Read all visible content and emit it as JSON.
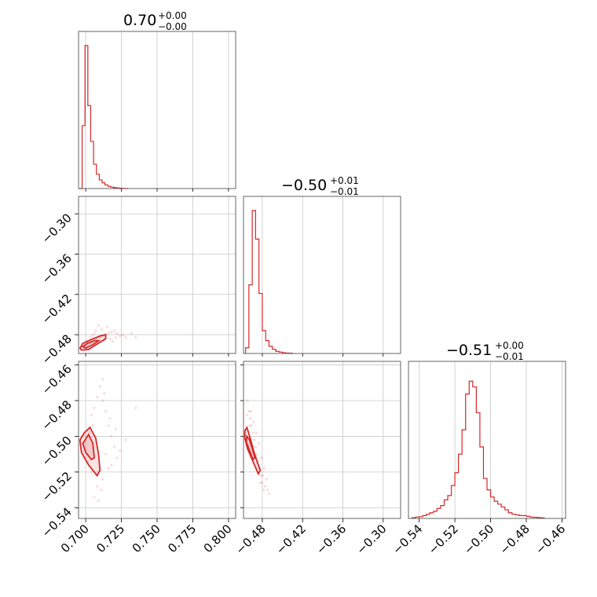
{
  "chart_data": {
    "type": "corner",
    "grid": true,
    "color": "#d62728",
    "parameters": [
      {
        "title": "0.70",
        "plus": "+0.00",
        "minus": "−0.00",
        "range": [
          0.695,
          0.805
        ],
        "ticks": [
          0.7,
          0.725,
          0.75,
          0.775,
          0.8
        ],
        "tick_labels": [
          "0.700",
          "0.725",
          "0.750",
          "0.775",
          "0.800"
        ],
        "hist_bins": [
          0.6955,
          0.6975,
          0.6995,
          0.7015,
          0.7035,
          0.7055,
          0.7075,
          0.7095,
          0.7115,
          0.7135,
          0.7155,
          0.7175,
          0.7195,
          0.7215,
          0.7235,
          0.7255,
          0.7275,
          0.7295
        ],
        "hist_counts": [
          0,
          0.44,
          1.0,
          0.58,
          0.33,
          0.17,
          0.1,
          0.06,
          0.04,
          0.025,
          0.015,
          0.01,
          0.006,
          0.004,
          0.002,
          0.001,
          0
        ]
      },
      {
        "title": "−0.50",
        "plus": "+0.01",
        "minus": "−0.01",
        "range": [
          -0.508,
          -0.274
        ],
        "ticks": [
          -0.3,
          -0.36,
          -0.42,
          -0.48
        ],
        "tick_labels": [
          "−0.30",
          "−0.36",
          "−0.42",
          "−0.48"
        ],
        "x_ticks": [
          -0.48,
          -0.42,
          -0.36,
          -0.3
        ],
        "x_tick_labels": [
          "−0.48",
          "−0.42",
          "−0.36",
          "−0.30"
        ],
        "hist_bins": [
          -0.505,
          -0.5,
          -0.495,
          -0.49,
          -0.485,
          -0.48,
          -0.475,
          -0.47,
          -0.465,
          -0.46,
          -0.455,
          -0.45,
          -0.445,
          -0.44,
          -0.435
        ],
        "hist_counts": [
          0.04,
          0.48,
          1.0,
          0.8,
          0.42,
          0.16,
          0.09,
          0.05,
          0.03,
          0.015,
          0.01,
          0.005,
          0.003,
          0.002
        ]
      },
      {
        "title": "−0.51",
        "plus": "+0.00",
        "minus": "−0.01",
        "range": [
          -0.546,
          -0.458
        ],
        "ticks": [
          -0.46,
          -0.48,
          -0.5,
          -0.52,
          -0.54
        ],
        "tick_labels": [
          "−0.46",
          "−0.48",
          "−0.50",
          "−0.52",
          "−0.54"
        ],
        "x_ticks": [
          -0.54,
          -0.52,
          -0.5,
          -0.48,
          -0.46
        ],
        "x_tick_labels": [
          "−0.54",
          "−0.52",
          "−0.50",
          "−0.48",
          "−0.46"
        ],
        "hist_bins": [
          -0.544,
          -0.542,
          -0.54,
          -0.538,
          -0.536,
          -0.534,
          -0.532,
          -0.53,
          -0.528,
          -0.526,
          -0.524,
          -0.522,
          -0.52,
          -0.518,
          -0.516,
          -0.514,
          -0.512,
          -0.51,
          -0.508,
          -0.506,
          -0.504,
          -0.502,
          -0.5,
          -0.498,
          -0.496,
          -0.494,
          -0.492,
          -0.49,
          -0.488,
          -0.486,
          -0.484,
          -0.482,
          -0.48,
          -0.478,
          -0.476,
          -0.474,
          -0.472,
          -0.47
        ],
        "hist_counts": [
          0.005,
          0.01,
          0.012,
          0.02,
          0.03,
          0.04,
          0.05,
          0.07,
          0.09,
          0.13,
          0.16,
          0.23,
          0.32,
          0.45,
          0.62,
          0.87,
          0.96,
          0.92,
          0.74,
          0.5,
          0.28,
          0.2,
          0.15,
          0.12,
          0.1,
          0.08,
          0.06,
          0.04,
          0.03,
          0.025,
          0.02,
          0.02,
          0.015,
          0.01,
          0.008,
          0.006,
          0.004
        ]
      }
    ],
    "pairs": [
      {
        "x_param": 0,
        "y_param": 1,
        "scatter_points": [
          [
            0.7,
            -0.495
          ],
          [
            0.702,
            -0.493
          ],
          [
            0.704,
            -0.49
          ],
          [
            0.706,
            -0.488
          ],
          [
            0.708,
            -0.486
          ],
          [
            0.71,
            -0.484
          ],
          [
            0.712,
            -0.482
          ],
          [
            0.714,
            -0.48
          ],
          [
            0.716,
            -0.478
          ],
          [
            0.718,
            -0.476
          ],
          [
            0.72,
            -0.474
          ],
          [
            0.722,
            -0.478
          ],
          [
            0.724,
            -0.482
          ],
          [
            0.726,
            -0.48
          ],
          [
            0.728,
            -0.484
          ],
          [
            0.732,
            -0.478
          ],
          [
            0.711,
            -0.472
          ],
          [
            0.715,
            -0.468
          ],
          [
            0.709,
            -0.466
          ],
          [
            0.706,
            -0.478
          ],
          [
            0.703,
            -0.484
          ],
          [
            0.713,
            -0.488
          ],
          [
            0.717,
            -0.486
          ],
          [
            0.719,
            -0.49
          ],
          [
            0.721,
            -0.484
          ],
          [
            0.701,
            -0.489
          ],
          [
            0.705,
            -0.482
          ],
          [
            0.707,
            -0.474
          ],
          [
            0.735,
            -0.484
          ],
          [
            0.698,
            -0.497
          ]
        ],
        "contours": [
          [
            [
              0.696,
              -0.5
            ],
            [
              0.698,
              -0.493
            ],
            [
              0.703,
              -0.488
            ],
            [
              0.71,
              -0.482
            ],
            [
              0.714,
              -0.48
            ],
            [
              0.714,
              -0.486
            ],
            [
              0.708,
              -0.494
            ],
            [
              0.702,
              -0.502
            ],
            [
              0.697,
              -0.503
            ]
          ],
          [
            [
              0.698,
              -0.498
            ],
            [
              0.701,
              -0.493
            ],
            [
              0.706,
              -0.489
            ],
            [
              0.709,
              -0.489
            ],
            [
              0.705,
              -0.495
            ],
            [
              0.7,
              -0.5
            ]
          ]
        ]
      },
      {
        "x_param": 0,
        "y_param": 2,
        "scatter_points": [
          [
            0.704,
            -0.488
          ],
          [
            0.706,
            -0.484
          ],
          [
            0.708,
            -0.478
          ],
          [
            0.71,
            -0.472
          ],
          [
            0.712,
            -0.468
          ],
          [
            0.712,
            -0.48
          ],
          [
            0.714,
            -0.486
          ],
          [
            0.716,
            -0.494
          ],
          [
            0.718,
            -0.5
          ],
          [
            0.72,
            -0.506
          ],
          [
            0.722,
            -0.512
          ],
          [
            0.716,
            -0.518
          ],
          [
            0.712,
            -0.524
          ],
          [
            0.708,
            -0.528
          ],
          [
            0.706,
            -0.534
          ],
          [
            0.704,
            -0.52
          ],
          [
            0.702,
            -0.514
          ],
          [
            0.7,
            -0.508
          ],
          [
            0.714,
            -0.51
          ],
          [
            0.718,
            -0.516
          ],
          [
            0.724,
            -0.508
          ],
          [
            0.728,
            -0.502
          ],
          [
            0.735,
            -0.484
          ],
          [
            0.709,
            -0.536
          ],
          [
            0.711,
            -0.53
          ],
          [
            0.703,
            -0.498
          ],
          [
            0.705,
            -0.494
          ],
          [
            0.713,
            -0.476
          ],
          [
            0.717,
            -0.49
          ],
          [
            0.721,
            -0.496
          ]
        ],
        "contours": [
          [
            [
              0.696,
              -0.502
            ],
            [
              0.699,
              -0.498
            ],
            [
              0.703,
              -0.495
            ],
            [
              0.707,
              -0.501
            ],
            [
              0.709,
              -0.51
            ],
            [
              0.71,
              -0.519
            ],
            [
              0.708,
              -0.522
            ],
            [
              0.702,
              -0.516
            ],
            [
              0.697,
              -0.509
            ]
          ],
          [
            [
              0.698,
              -0.504
            ],
            [
              0.702,
              -0.499
            ],
            [
              0.705,
              -0.504
            ],
            [
              0.706,
              -0.512
            ],
            [
              0.704,
              -0.513
            ],
            [
              0.7,
              -0.509
            ]
          ]
        ]
      },
      {
        "x_param": 1,
        "y_param": 2,
        "scatter_points": [
          [
            -0.502,
            -0.48
          ],
          [
            -0.5,
            -0.486
          ],
          [
            -0.498,
            -0.49
          ],
          [
            -0.496,
            -0.494
          ],
          [
            -0.494,
            -0.498
          ],
          [
            -0.492,
            -0.502
          ],
          [
            -0.49,
            -0.506
          ],
          [
            -0.488,
            -0.51
          ],
          [
            -0.486,
            -0.514
          ],
          [
            -0.484,
            -0.518
          ],
          [
            -0.482,
            -0.522
          ],
          [
            -0.48,
            -0.526
          ],
          [
            -0.478,
            -0.53
          ],
          [
            -0.476,
            -0.528
          ],
          [
            -0.474,
            -0.524
          ],
          [
            -0.472,
            -0.53
          ],
          [
            -0.47,
            -0.532
          ],
          [
            -0.497,
            -0.486
          ],
          [
            -0.493,
            -0.492
          ],
          [
            -0.489,
            -0.498
          ],
          [
            -0.485,
            -0.504
          ],
          [
            -0.481,
            -0.512
          ],
          [
            -0.477,
            -0.518
          ],
          [
            -0.499,
            -0.494
          ],
          [
            -0.495,
            -0.506
          ],
          [
            -0.491,
            -0.512
          ],
          [
            -0.487,
            -0.52
          ],
          [
            -0.483,
            -0.526
          ],
          [
            -0.503,
            -0.488
          ],
          [
            -0.479,
            -0.522
          ]
        ],
        "contours": [
          [
            [
              -0.506,
              -0.497
            ],
            [
              -0.503,
              -0.495
            ],
            [
              -0.498,
              -0.501
            ],
            [
              -0.493,
              -0.508
            ],
            [
              -0.487,
              -0.515
            ],
            [
              -0.483,
              -0.519
            ],
            [
              -0.486,
              -0.521
            ],
            [
              -0.494,
              -0.514
            ],
            [
              -0.502,
              -0.507
            ],
            [
              -0.506,
              -0.501
            ]
          ],
          [
            [
              -0.503,
              -0.5
            ],
            [
              -0.499,
              -0.502
            ],
            [
              -0.494,
              -0.508
            ],
            [
              -0.491,
              -0.512
            ],
            [
              -0.494,
              -0.513
            ],
            [
              -0.5,
              -0.507
            ],
            [
              -0.504,
              -0.503
            ]
          ]
        ]
      }
    ]
  }
}
